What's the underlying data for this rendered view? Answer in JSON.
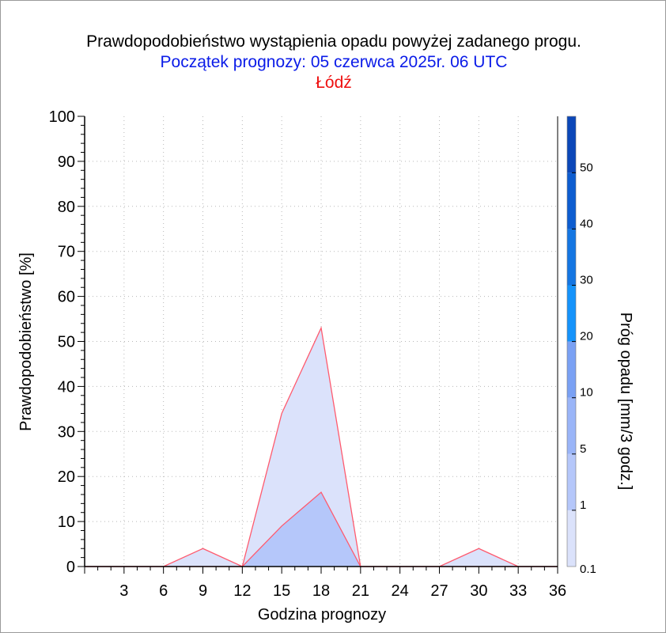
{
  "title": "Prawdopodobieństwo wystąpienia opadu powyżej zadanego progu.",
  "subtitle": "Początek prognozy: 05 czerwca 2025r. 06 UTC",
  "location": "Łódź",
  "colors": {
    "title": "#000000",
    "subtitle": "#0a1be8",
    "location": "#ee1010",
    "series_line": "#ff5a6e"
  },
  "chart_data": {
    "type": "area",
    "xlabel": "Godzina prognozy",
    "ylabel": "Prawdopodobieństwo [%]",
    "xlim": [
      0,
      36
    ],
    "ylim": [
      0,
      100
    ],
    "x_ticks": [
      "3",
      "6",
      "9",
      "12",
      "15",
      "18",
      "21",
      "24",
      "27",
      "30",
      "33",
      "36"
    ],
    "y_ticks": [
      "0",
      "10",
      "20",
      "30",
      "40",
      "50",
      "60",
      "70",
      "80",
      "90",
      "100"
    ],
    "grid": true,
    "x": [
      0,
      3,
      6,
      9,
      12,
      15,
      18,
      21,
      24,
      27,
      30,
      33,
      36
    ],
    "series": [
      {
        "threshold": "0.1",
        "color": "#dbe2fb",
        "values": [
          0,
          0,
          0,
          4,
          0,
          34,
          53,
          0,
          0,
          0,
          4,
          0,
          0
        ]
      },
      {
        "threshold": "1",
        "color": "#b5c7fa",
        "values": [
          0,
          0,
          0,
          0,
          0,
          9,
          16.5,
          0,
          0,
          0,
          0,
          0,
          0
        ]
      }
    ],
    "colorbar": {
      "label": "Próg opadu [mm/3 godz.]",
      "tick_labels": [
        "0.1",
        "1",
        "5",
        "10",
        "20",
        "30",
        "40",
        "50"
      ],
      "colors": [
        "#dbe2fb",
        "#b5c7fa",
        "#9ab5f8",
        "#7aa1f4",
        "#1593fb",
        "#1476e2",
        "#0d5dd0",
        "#0b47b8",
        "#083a9e"
      ]
    }
  }
}
